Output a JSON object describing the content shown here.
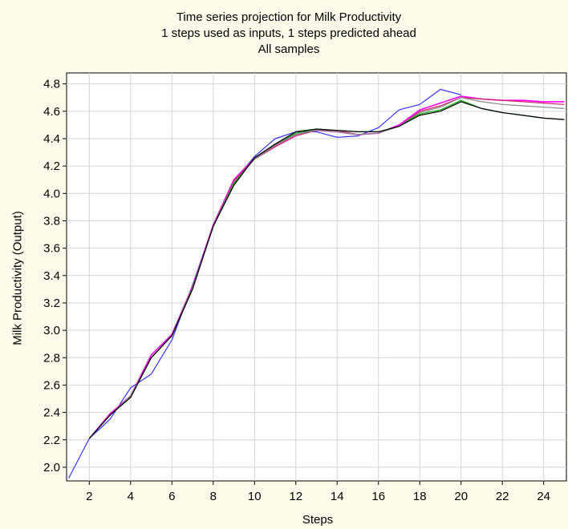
{
  "chart_data": {
    "type": "line",
    "title": "Time series projection for Milk Productivity",
    "subtitle_lines": [
      "1 steps used as inputs, 1 steps predicted ahead",
      "All samples"
    ],
    "xlabel": "Steps",
    "ylabel": "Milk Productivity (Output)",
    "xlim": [
      0.9,
      25.1
    ],
    "ylim": [
      1.9,
      4.88
    ],
    "xticks": [
      2,
      4,
      6,
      8,
      10,
      12,
      14,
      16,
      18,
      20,
      22,
      24
    ],
    "yticks": [
      2.0,
      2.2,
      2.4,
      2.6,
      2.8,
      3.0,
      3.2,
      3.4,
      3.6,
      3.8,
      4.0,
      4.2,
      4.4,
      4.6,
      4.8
    ],
    "grid": true,
    "x": [
      1,
      2,
      3,
      4,
      5,
      6,
      7,
      8,
      9,
      10,
      11,
      12,
      13,
      14,
      15,
      16,
      17,
      18,
      19,
      20,
      21,
      22,
      23,
      24,
      25
    ],
    "series": [
      {
        "color": "#3333ff",
        "values": [
          1.92,
          2.21,
          2.35,
          2.58,
          2.68,
          2.93,
          3.33,
          3.77,
          4.09,
          4.27,
          4.4,
          4.45,
          4.45,
          4.41,
          4.42,
          4.48,
          4.61,
          4.65,
          4.76,
          4.72,
          null,
          null,
          null,
          null,
          null
        ]
      },
      {
        "color": "#ff00ff",
        "values": [
          null,
          2.21,
          2.39,
          2.52,
          2.82,
          2.97,
          3.32,
          3.77,
          4.1,
          4.26,
          4.35,
          4.43,
          4.46,
          4.45,
          4.43,
          4.44,
          4.5,
          4.61,
          4.66,
          4.71,
          4.69,
          4.68,
          4.68,
          4.67,
          4.67
        ]
      },
      {
        "color": "#cc2266",
        "values": [
          null,
          2.21,
          2.38,
          2.52,
          2.8,
          2.96,
          3.31,
          3.76,
          4.09,
          4.25,
          4.34,
          4.42,
          4.46,
          4.46,
          4.43,
          4.44,
          4.49,
          4.6,
          4.64,
          4.7,
          4.69,
          4.68,
          4.67,
          4.66,
          4.65
        ]
      },
      {
        "color": "#888888",
        "values": [
          null,
          2.21,
          2.38,
          2.52,
          2.8,
          2.96,
          3.31,
          3.76,
          4.08,
          4.25,
          4.35,
          4.43,
          4.46,
          4.45,
          4.43,
          4.44,
          4.49,
          4.59,
          4.63,
          4.7,
          4.67,
          4.65,
          4.64,
          4.63,
          4.62
        ]
      },
      {
        "color": "#00aa00",
        "values": [
          null,
          2.21,
          2.38,
          2.51,
          2.8,
          2.96,
          3.31,
          3.76,
          4.07,
          4.26,
          4.36,
          4.44,
          4.47,
          4.46,
          4.45,
          4.45,
          4.49,
          4.58,
          4.61,
          4.68,
          4.62,
          4.59,
          4.57,
          4.55,
          4.54
        ]
      },
      {
        "color": "#000000",
        "values": [
          null,
          2.21,
          2.38,
          2.51,
          2.8,
          2.96,
          3.3,
          3.76,
          4.06,
          4.26,
          4.36,
          4.45,
          4.47,
          4.46,
          4.45,
          4.45,
          4.49,
          4.57,
          4.6,
          4.67,
          4.62,
          4.59,
          4.57,
          4.55,
          4.54
        ]
      }
    ]
  }
}
